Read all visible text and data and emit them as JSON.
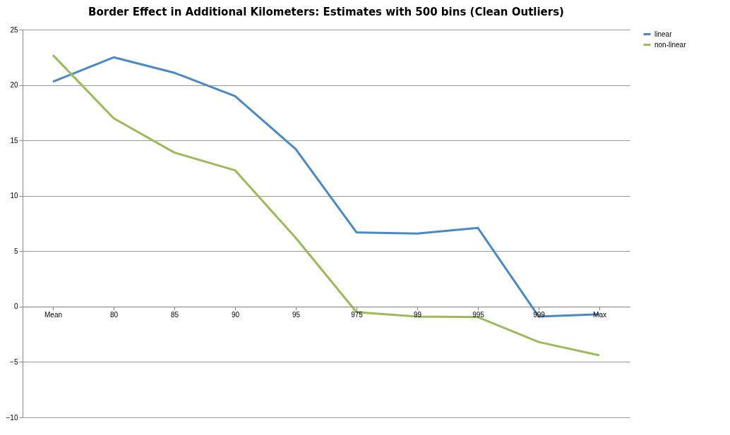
{
  "chart_data": {
    "type": "line",
    "title": "Border Effect in Additional Kilometers: Estimates with 500 bins  (Clean Outliers)",
    "categories": [
      "Mean",
      "80",
      "85",
      "90",
      "95",
      "975",
      "99",
      "995",
      "999",
      "Max"
    ],
    "series": [
      {
        "name": "linear",
        "color": "#4a89c8",
        "values": [
          20.3,
          22.5,
          21.1,
          19.0,
          14.2,
          6.7,
          6.6,
          7.1,
          -0.9,
          -0.7
        ]
      },
      {
        "name": "non-linear",
        "color": "#9bbb59",
        "values": [
          22.7,
          17.0,
          13.9,
          12.3,
          6.2,
          -0.5,
          -0.9,
          -0.95,
          -3.2,
          -4.4
        ]
      }
    ],
    "ylim": [
      -10,
      25
    ],
    "yticks": [
      -10,
      -5,
      0,
      5,
      10,
      15,
      20,
      25
    ],
    "grid": "y",
    "legend": "right"
  }
}
